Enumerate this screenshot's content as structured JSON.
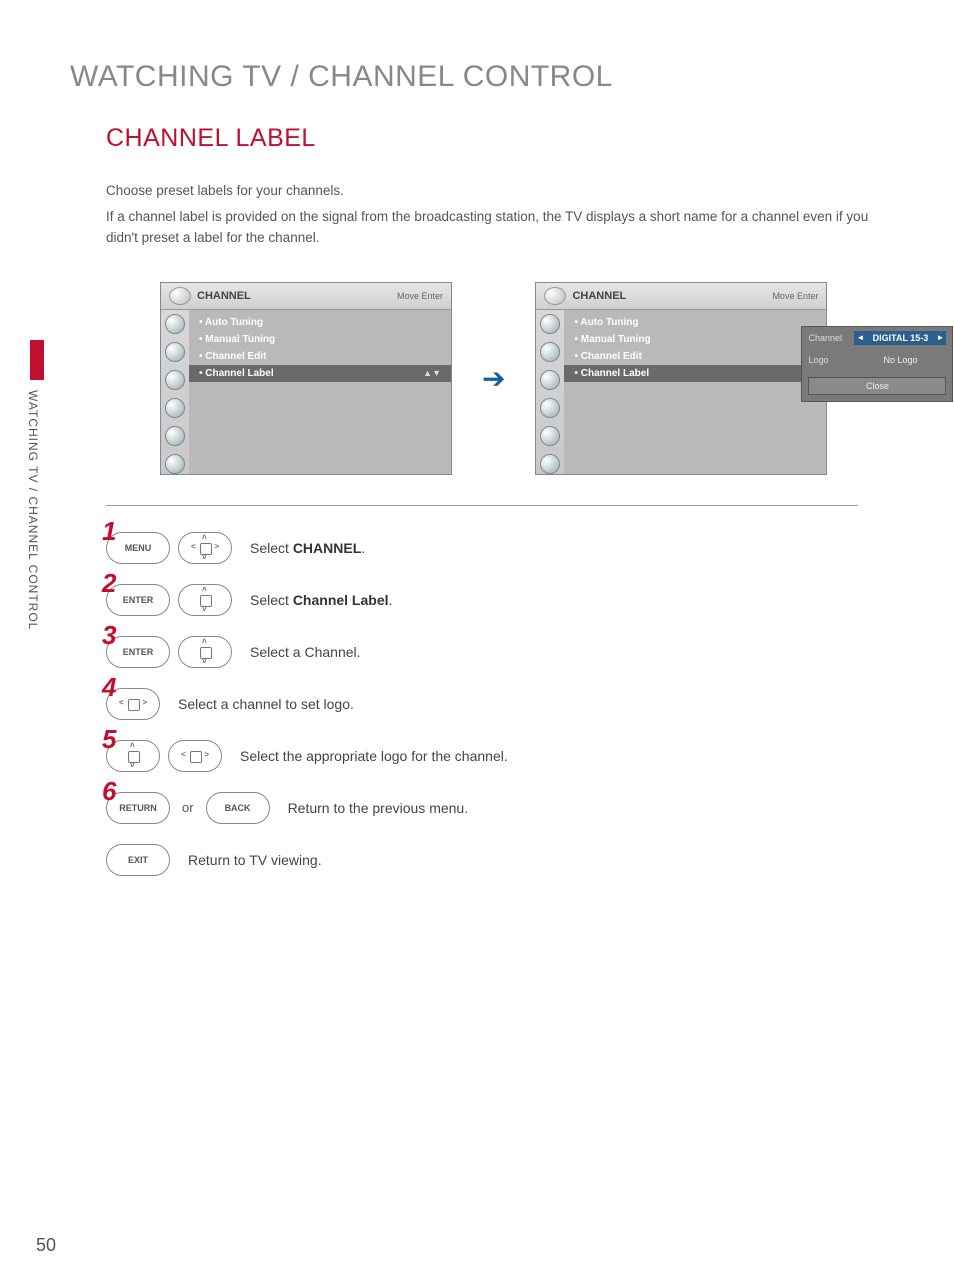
{
  "page": {
    "number": "50",
    "section_title": "WATCHING TV / CHANNEL CONTROL",
    "sub_title": "CHANNEL LABEL",
    "side_text": "WATCHING TV / CHANNEL CONTROL",
    "intro_line1": "Choose preset labels for your channels.",
    "intro_line2": "If a channel label is provided on the signal from the broadcasting station, the TV displays a short name for a channel even if you didn't preset a label for the channel."
  },
  "osd": {
    "header_title": "CHANNEL",
    "header_hints": "Move    Enter",
    "menu_items": [
      {
        "label": "Auto Tuning",
        "selected": false
      },
      {
        "label": "Manual Tuning",
        "selected": false
      },
      {
        "label": "Channel Edit",
        "selected": false
      },
      {
        "label": "Channel Label",
        "selected": true
      }
    ],
    "popup": {
      "row1_label": "Channel",
      "row1_value": "DIGITAL 15-3",
      "row2_label": "Logo",
      "row2_value": "No Logo",
      "close": "Close"
    }
  },
  "steps": {
    "s1": {
      "num": "1",
      "btn1": "MENU",
      "text_prefix": "Select ",
      "text_bold": "CHANNEL",
      "text_suffix": "."
    },
    "s2": {
      "num": "2",
      "btn1": "ENTER",
      "text_prefix": "Select ",
      "text_bold": "Channel Label",
      "text_suffix": "."
    },
    "s3": {
      "num": "3",
      "btn1": "ENTER",
      "text": "Select a Channel."
    },
    "s4": {
      "num": "4",
      "text": "Select a channel to set logo."
    },
    "s5": {
      "num": "5",
      "text": "Select the appropriate logo for the channel."
    },
    "s6": {
      "num": "6",
      "btn1": "RETURN",
      "or": "or",
      "btn2": "BACK",
      "text": "Return to the previous menu."
    },
    "s7": {
      "btn1": "EXIT",
      "text": "Return to TV viewing."
    }
  },
  "colors": {
    "accent": "#c20f2f",
    "text": "#444444",
    "muted": "#888888",
    "osd_sel_bg": "#6a6a6a",
    "osd_bg": "#b9b9b9",
    "popup_val_bg": "#2b5f8f",
    "arrow": "#1560a0"
  }
}
